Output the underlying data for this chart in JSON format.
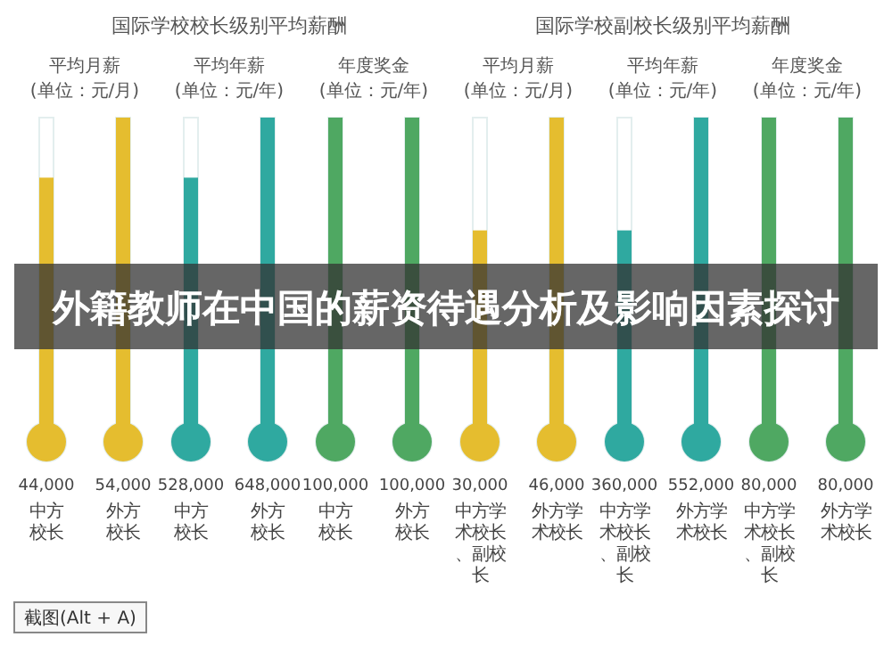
{
  "chart_data": [
    {
      "type": "bar",
      "title": "平均月薪",
      "subtitle": "(单位：元/月)",
      "categories": [
        "中方校长",
        "外方校长"
      ],
      "values": [
        44000,
        54000
      ],
      "value_labels": [
        "44,000",
        "54,000"
      ],
      "colors": [
        "#e5bd2f",
        "#e5bd2f"
      ],
      "annotations": [
        "国际学校校长级别平均薪酬",
        "外籍教师在中国的薪资待遇分析及影响因素探讨",
        "截图(Alt + A)"
      ]
    },
    {
      "type": "bar",
      "title": "平均年薪",
      "subtitle": "(单位：元/年)",
      "categories": [
        "中方校长",
        "外方校长"
      ],
      "values": [
        528000,
        648000
      ],
      "value_labels": [
        "528,000",
        "648,000"
      ],
      "colors": [
        "#2fa9a0",
        "#2fa9a0"
      ]
    },
    {
      "type": "bar",
      "title": "年度奖金",
      "subtitle": "(单位：元/年)",
      "categories": [
        "中方校长",
        "外方校长"
      ],
      "values": [
        100000,
        100000
      ],
      "value_labels": [
        "100,000",
        "100,000"
      ],
      "colors": [
        "#4fa862",
        "#4fa862"
      ]
    },
    {
      "type": "bar",
      "title": "平均月薪",
      "subtitle": "(单位：元/月)",
      "categories": [
        "中方学术校长、副校长",
        "外方学术校长"
      ],
      "values": [
        30000,
        46000
      ],
      "value_labels": [
        "30,000",
        "46,000"
      ],
      "colors": [
        "#e5bd2f",
        "#e5bd2f"
      ],
      "annotations": [
        "国际学校副校长级别平均薪酬"
      ]
    },
    {
      "type": "bar",
      "title": "平均年薪",
      "subtitle": "(单位：元/年)",
      "categories": [
        "中方学术校长、副校长",
        "外方学术校长"
      ],
      "values": [
        360000,
        552000
      ],
      "value_labels": [
        "360,000",
        "552,000"
      ],
      "colors": [
        "#2fa9a0",
        "#2fa9a0"
      ]
    },
    {
      "type": "bar",
      "title": "年度奖金",
      "subtitle": "(单位：元/年)",
      "categories": [
        "中方学术校长、副校长",
        "外方学术校长"
      ],
      "values": [
        80000,
        80000
      ],
      "value_labels": [
        "80,000",
        "80,000"
      ],
      "colors": [
        "#4fa862",
        "#4fa862"
      ]
    }
  ]
}
